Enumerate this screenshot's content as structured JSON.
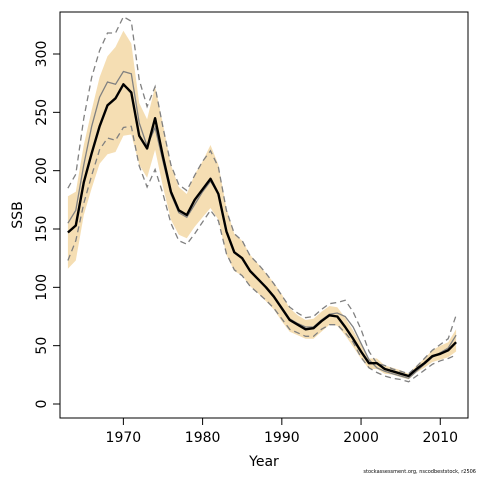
{
  "chart_data": {
    "type": "line",
    "xlabel": "Year",
    "ylabel": "SSB",
    "xlim": [
      1962,
      2013.5
    ],
    "ylim": [
      -12,
      336
    ],
    "x_ticks": [
      1970,
      1980,
      1990,
      2000,
      2010
    ],
    "y_ticks": [
      0,
      50,
      100,
      150,
      200,
      250,
      300
    ],
    "grid": false,
    "colors": {
      "band": "#f5deb3",
      "estimate": "#000000",
      "ci_lines": "#808080",
      "axis": "#000000"
    },
    "series": [
      {
        "role": "estimate",
        "x": [
          1963,
          1964,
          1965,
          1966,
          1967,
          1968,
          1969,
          1970,
          1971,
          1972,
          1973,
          1974,
          1975,
          1976,
          1977,
          1978,
          1979,
          1980,
          1981,
          1982,
          1983,
          1984,
          1985,
          1986,
          1987,
          1988,
          1989,
          1990,
          1991,
          1992,
          1993,
          1994,
          1995,
          1996,
          1997,
          1998,
          1999,
          2000,
          2001,
          2002,
          2003,
          2004,
          2005,
          2006,
          2007,
          2008,
          2009,
          2010,
          2011,
          2012
        ],
        "values": [
          147,
          153,
          190,
          215,
          238,
          256,
          262,
          274,
          267,
          230,
          219,
          245,
          212,
          182,
          166,
          162,
          175,
          184,
          193,
          180,
          148,
          130,
          125,
          114,
          107,
          100,
          92,
          82,
          72,
          68,
          64,
          65,
          71,
          76,
          75,
          66,
          56,
          45,
          35,
          35,
          30,
          28,
          26,
          24,
          30,
          35,
          41,
          43,
          46,
          53
        ]
      },
      {
        "role": "band-upper",
        "x": [
          1963,
          1964,
          1965,
          1966,
          1967,
          1968,
          1969,
          1970,
          1971,
          1972,
          1973,
          1974,
          1975,
          1976,
          1977,
          1978,
          1979,
          1980,
          1981,
          1982,
          1983,
          1984,
          1985,
          1986,
          1987,
          1988,
          1989,
          1990,
          1991,
          1992,
          1993,
          1994,
          1995,
          1996,
          1997,
          1998,
          1999,
          2000,
          2001,
          2002,
          2003,
          2004,
          2005,
          2006,
          2007,
          2008,
          2009,
          2010,
          2011,
          2012
        ],
        "values": [
          178,
          182,
          222,
          252,
          280,
          298,
          306,
          320,
          309,
          258,
          244,
          272,
          240,
          205,
          186,
          180,
          197,
          208,
          222,
          205,
          168,
          146,
          140,
          128,
          120,
          112,
          104,
          94,
          82,
          76,
          72,
          73,
          79,
          84,
          83,
          74,
          63,
          51,
          39,
          39,
          33,
          31,
          29,
          26,
          33,
          39,
          46,
          50,
          53,
          64
        ]
      },
      {
        "role": "band-lower",
        "x": [
          1963,
          1964,
          1965,
          1966,
          1967,
          1968,
          1969,
          1970,
          1971,
          1972,
          1973,
          1974,
          1975,
          1976,
          1977,
          1978,
          1979,
          1980,
          1981,
          1982,
          1983,
          1984,
          1985,
          1986,
          1987,
          1988,
          1989,
          1990,
          1991,
          1992,
          1993,
          1994,
          1995,
          1996,
          1997,
          1998,
          1999,
          2000,
          2001,
          2002,
          2003,
          2004,
          2005,
          2006,
          2007,
          2008,
          2009,
          2010,
          2011,
          2012
        ],
        "values": [
          116,
          123,
          162,
          185,
          206,
          214,
          216,
          230,
          231,
          205,
          194,
          218,
          186,
          158,
          145,
          142,
          152,
          160,
          168,
          158,
          128,
          114,
          110,
          101,
          95,
          88,
          81,
          71,
          62,
          59,
          56,
          56,
          62,
          68,
          67,
          59,
          49,
          39,
          30,
          30,
          26,
          25,
          23,
          21,
          27,
          31,
          36,
          38,
          40,
          45
        ]
      },
      {
        "role": "ci-upper",
        "x": [
          1963,
          1964,
          1965,
          1966,
          1967,
          1968,
          1969,
          1970,
          1971,
          1972,
          1973,
          1974,
          1975,
          1976,
          1977,
          1978,
          1979,
          1980,
          1981,
          1982,
          1983,
          1984,
          1985,
          1986,
          1987,
          1988,
          1989,
          1990,
          1991,
          1992,
          1993,
          1994,
          1995,
          1996,
          1997,
          1998,
          1999,
          2000,
          2001,
          2002,
          2003,
          2004,
          2005,
          2006,
          2007,
          2008,
          2009,
          2010,
          2011,
          2012
        ],
        "values": [
          185,
          197,
          245,
          280,
          303,
          318,
          318,
          332,
          328,
          278,
          255,
          272,
          237,
          205,
          188,
          183,
          196,
          208,
          217,
          203,
          166,
          146,
          140,
          127,
          120,
          112,
          103,
          93,
          83,
          78,
          74,
          75,
          81,
          86,
          87,
          89,
          79,
          64,
          45,
          35,
          33,
          30,
          28,
          26,
          32,
          39,
          46,
          51,
          56,
          76
        ]
      },
      {
        "role": "ci-lower",
        "x": [
          1963,
          1964,
          1965,
          1966,
          1967,
          1968,
          1969,
          1970,
          1971,
          1972,
          1973,
          1974,
          1975,
          1976,
          1977,
          1978,
          1979,
          1980,
          1981,
          1982,
          1983,
          1984,
          1985,
          1986,
          1987,
          1988,
          1989,
          1990,
          1991,
          1992,
          1993,
          1994,
          1995,
          1996,
          1997,
          1998,
          1999,
          2000,
          2001,
          2002,
          2003,
          2004,
          2005,
          2006,
          2007,
          2008,
          2009,
          2010,
          2011,
          2012
        ],
        "values": [
          123,
          140,
          172,
          196,
          218,
          228,
          226,
          237,
          238,
          204,
          186,
          201,
          180,
          155,
          140,
          137,
          146,
          156,
          166,
          157,
          129,
          115,
          110,
          101,
          95,
          89,
          82,
          73,
          64,
          61,
          58,
          58,
          64,
          68,
          68,
          61,
          53,
          40,
          31,
          27,
          24,
          22,
          21,
          19,
          24,
          29,
          34,
          37,
          39,
          42
        ]
      },
      {
        "role": "estimate-grey",
        "x": [
          1963,
          1964,
          1965,
          1966,
          1967,
          1968,
          1969,
          1970,
          1971,
          1972,
          1973,
          1974,
          1975,
          1976,
          1977,
          1978,
          1979,
          1980,
          1981,
          1982,
          1983,
          1984,
          1985,
          1986,
          1987,
          1988,
          1989,
          1990,
          1991,
          1992,
          1993,
          1994,
          1995,
          1996,
          1997,
          1998,
          1999,
          2000,
          2001,
          2002,
          2003,
          2004,
          2005,
          2006,
          2007,
          2008,
          2009,
          2010,
          2011,
          2012
        ],
        "values": [
          155,
          166,
          205,
          238,
          263,
          276,
          274,
          285,
          283,
          241,
          221,
          237,
          208,
          180,
          164,
          160,
          171,
          182,
          191,
          180,
          147,
          130,
          125,
          114,
          107,
          100,
          92,
          83,
          73,
          69,
          66,
          66,
          72,
          77,
          78,
          75,
          66,
          52,
          38,
          31,
          28,
          26,
          24,
          22,
          28,
          34,
          40,
          44,
          48,
          59
        ]
      }
    ]
  },
  "footnote": "stockassessment.org, nscodbeststock, r2506"
}
